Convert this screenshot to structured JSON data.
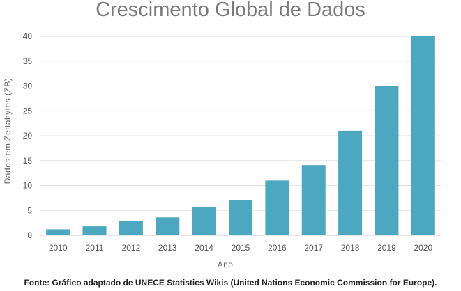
{
  "chart_data": {
    "type": "bar",
    "title": "Crescimento Global de Dados",
    "xlabel": "Ano",
    "ylabel": "Dados em Zettabytes (ZB)",
    "categories": [
      "2010",
      "2011",
      "2012",
      "2013",
      "2014",
      "2015",
      "2016",
      "2017",
      "2018",
      "2019",
      "2020"
    ],
    "values": [
      1.2,
      1.8,
      2.8,
      3.6,
      5.7,
      7.0,
      11.0,
      14.1,
      21.0,
      30.0,
      40.0
    ],
    "ylim": [
      0,
      40
    ],
    "yticks": [
      0,
      5,
      10,
      15,
      20,
      25,
      30,
      35,
      40
    ],
    "grid": true,
    "bar_color": "#4ba8c0",
    "grid_color": "#e3e3e3"
  },
  "source": "Fonte: Gráfico adaptado de UNECE Statistics Wikis (United Nations Economic Commission for Europe)."
}
